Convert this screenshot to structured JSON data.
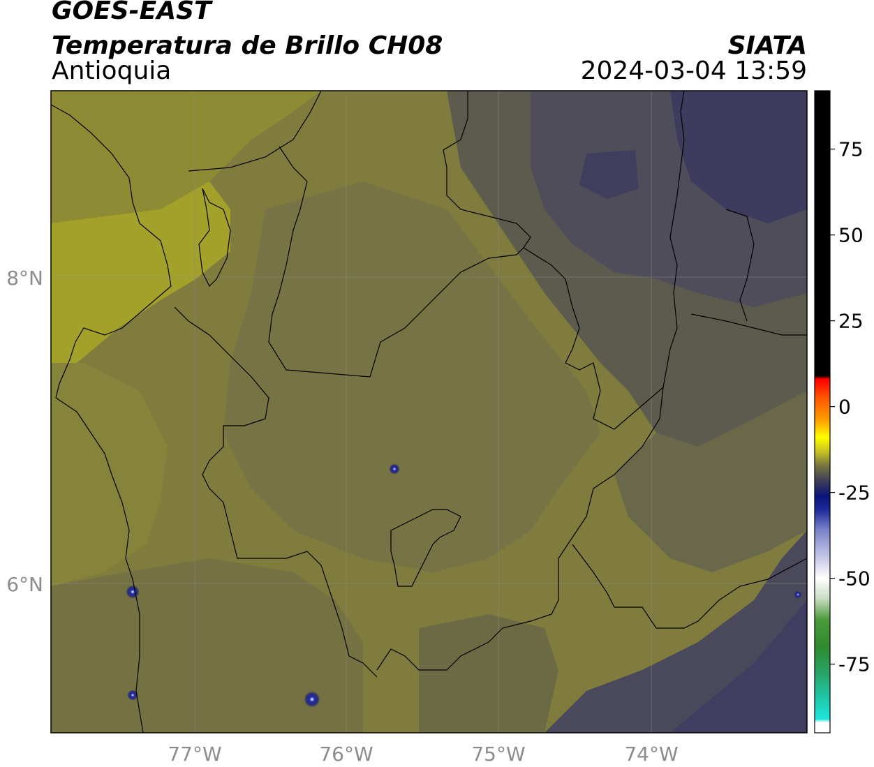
{
  "header": {
    "satellite": "GOES-EAST",
    "product": "Temperatura de Brillo CH08",
    "region": "Antioquia",
    "organization": "SIATA",
    "datetime": "2024-03-04 13:59"
  },
  "map": {
    "lat_ticks": [
      "8°N",
      "6°N"
    ],
    "lon_ticks": [
      "77°W",
      "76°W",
      "75°W",
      "74°W"
    ],
    "colors": {
      "warm_olive": "#a3a12a",
      "mid_olive": "#7f7c3e",
      "dark_olive": "#6c6a45",
      "slate": "#4f4d5a",
      "cold_slate": "#3b3a5e",
      "cold_core": "#1f2f9a"
    }
  },
  "colorbar": {
    "ticks": [
      "75",
      "50",
      "25",
      "0",
      "-25",
      "-50",
      "-75"
    ],
    "range": [
      -95,
      92
    ],
    "stops": [
      {
        "value": -95,
        "color": "#ffffff"
      },
      {
        "value": -92,
        "color": "#ffffff"
      },
      {
        "value": -91,
        "color": "#1ee6dc"
      },
      {
        "value": -85,
        "color": "#1ec8aa"
      },
      {
        "value": -78,
        "color": "#2aa56a"
      },
      {
        "value": -70,
        "color": "#2f8a2f"
      },
      {
        "value": -62,
        "color": "#4c9a3c"
      },
      {
        "value": -56,
        "color": "#c8dcc0"
      },
      {
        "value": -50,
        "color": "#ffffff"
      },
      {
        "value": -44,
        "color": "#c8c8e8"
      },
      {
        "value": -36,
        "color": "#7a84c8"
      },
      {
        "value": -30,
        "color": "#1e2a9a"
      },
      {
        "value": -26,
        "color": "#0a1478"
      },
      {
        "value": -22,
        "color": "#3a3a5a"
      },
      {
        "value": -17,
        "color": "#7a7840"
      },
      {
        "value": -13,
        "color": "#c8c420"
      },
      {
        "value": -9,
        "color": "#ffff00"
      },
      {
        "value": -4,
        "color": "#ffa000"
      },
      {
        "value": 3,
        "color": "#ff5000"
      },
      {
        "value": 8,
        "color": "#ff0000"
      },
      {
        "value": 9,
        "color": "#000000"
      },
      {
        "value": 92,
        "color": "#000000"
      }
    ]
  }
}
